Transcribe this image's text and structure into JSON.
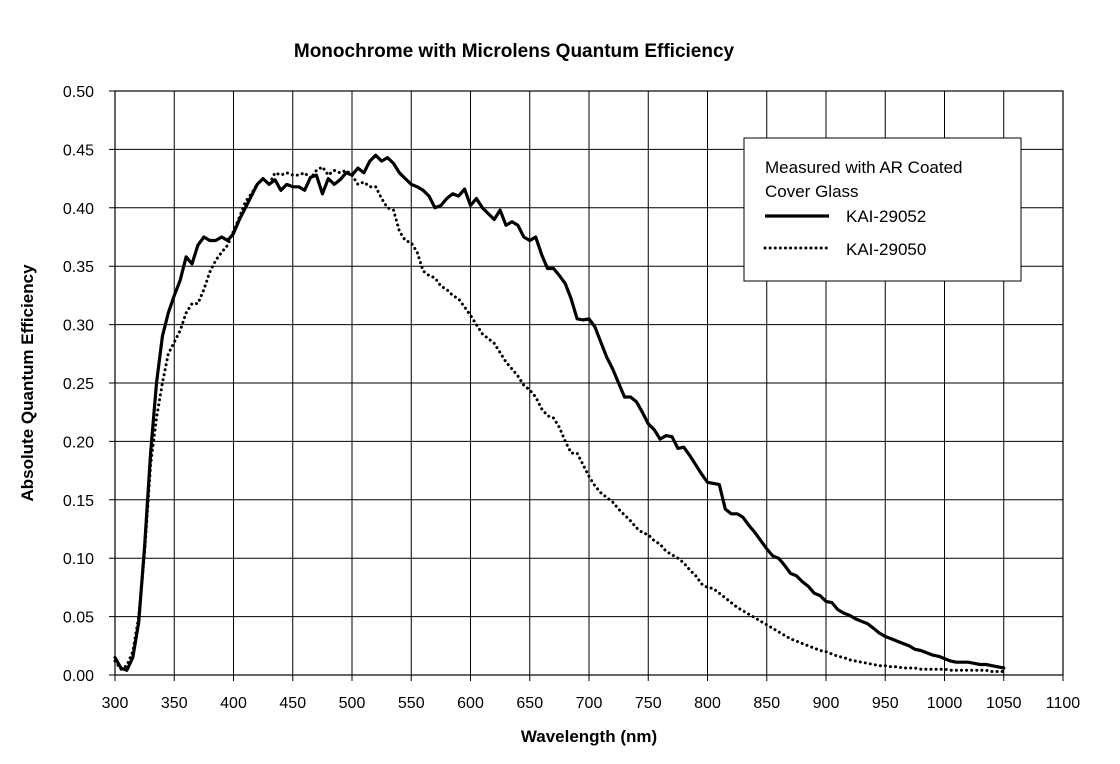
{
  "chart_data": {
    "type": "line",
    "title": "Monochrome with Microlens Quantum Efficiency",
    "xlabel": "Wavelength (nm)",
    "ylabel": "Absolute Quantum Efficiency",
    "xlim": [
      300,
      1100
    ],
    "ylim": [
      0,
      0.5
    ],
    "x_ticks": [
      "300",
      "350",
      "400",
      "450",
      "500",
      "550",
      "600",
      "650",
      "700",
      "750",
      "800",
      "850",
      "900",
      "950",
      "1000",
      "1050",
      "1100"
    ],
    "y_ticks": [
      "0.00",
      "0.05",
      "0.10",
      "0.15",
      "0.20",
      "0.25",
      "0.30",
      "0.35",
      "0.40",
      "0.45",
      "0.50"
    ],
    "grid": true,
    "legend_position": "top-right",
    "legend_title_lines": [
      "Measured with AR Coated",
      "Cover Glass"
    ],
    "series": [
      {
        "name": "KAI-29052",
        "style": "solid",
        "x": [
          300,
          305,
          310,
          315,
          320,
          325,
          330,
          335,
          340,
          345,
          350,
          355,
          360,
          365,
          370,
          375,
          380,
          385,
          390,
          395,
          400,
          405,
          410,
          415,
          420,
          425,
          430,
          435,
          440,
          445,
          450,
          455,
          460,
          465,
          470,
          475,
          480,
          485,
          490,
          495,
          500,
          505,
          510,
          515,
          520,
          525,
          530,
          535,
          540,
          545,
          550,
          555,
          560,
          565,
          570,
          575,
          580,
          585,
          590,
          595,
          600,
          605,
          610,
          615,
          620,
          625,
          630,
          635,
          640,
          645,
          650,
          655,
          660,
          665,
          670,
          675,
          680,
          685,
          690,
          695,
          700,
          705,
          710,
          715,
          720,
          725,
          730,
          735,
          740,
          745,
          750,
          755,
          760,
          765,
          770,
          775,
          780,
          785,
          790,
          795,
          800,
          805,
          810,
          815,
          820,
          825,
          830,
          835,
          840,
          845,
          850,
          855,
          860,
          865,
          870,
          875,
          880,
          885,
          890,
          895,
          900,
          905,
          910,
          915,
          920,
          925,
          930,
          935,
          940,
          945,
          950,
          955,
          960,
          965,
          970,
          975,
          980,
          985,
          990,
          995,
          1000,
          1005,
          1010,
          1015,
          1020,
          1025,
          1030,
          1035,
          1040,
          1045,
          1050
        ],
        "y": [
          0.015,
          0.006,
          0.004,
          0.015,
          0.045,
          0.11,
          0.19,
          0.25,
          0.29,
          0.31,
          0.325,
          0.338,
          0.358,
          0.352,
          0.368,
          0.375,
          0.372,
          0.372,
          0.375,
          0.372,
          0.378,
          0.39,
          0.4,
          0.41,
          0.42,
          0.425,
          0.42,
          0.424,
          0.415,
          0.42,
          0.418,
          0.418,
          0.415,
          0.426,
          0.428,
          0.412,
          0.425,
          0.42,
          0.424,
          0.43,
          0.428,
          0.434,
          0.43,
          0.44,
          0.445,
          0.44,
          0.443,
          0.438,
          0.43,
          0.425,
          0.42,
          0.418,
          0.415,
          0.41,
          0.4,
          0.402,
          0.408,
          0.412,
          0.41,
          0.416,
          0.402,
          0.408,
          0.4,
          0.395,
          0.39,
          0.398,
          0.385,
          0.388,
          0.385,
          0.375,
          0.372,
          0.375,
          0.36,
          0.348,
          0.348,
          0.342,
          0.335,
          0.322,
          0.305,
          0.304,
          0.305,
          0.298,
          0.285,
          0.272,
          0.262,
          0.25,
          0.238,
          0.238,
          0.234,
          0.225,
          0.215,
          0.21,
          0.202,
          0.205,
          0.204,
          0.194,
          0.195,
          0.188,
          0.18,
          0.172,
          0.165,
          0.164,
          0.163,
          0.142,
          0.138,
          0.138,
          0.135,
          0.128,
          0.122,
          0.115,
          0.108,
          0.102,
          0.1,
          0.094,
          0.087,
          0.085,
          0.08,
          0.076,
          0.07,
          0.068,
          0.063,
          0.062,
          0.056,
          0.053,
          0.051,
          0.048,
          0.046,
          0.044,
          0.04,
          0.036,
          0.033,
          0.031,
          0.029,
          0.027,
          0.025,
          0.022,
          0.021,
          0.019,
          0.017,
          0.016,
          0.014,
          0.012,
          0.011,
          0.011,
          0.011,
          0.01,
          0.009,
          0.009,
          0.008,
          0.007,
          0.006
        ]
      },
      {
        "name": "KAI-29050",
        "style": "dotted",
        "x": [
          300,
          305,
          310,
          315,
          320,
          325,
          330,
          335,
          340,
          345,
          350,
          355,
          360,
          365,
          370,
          375,
          380,
          385,
          390,
          395,
          400,
          405,
          410,
          415,
          420,
          425,
          430,
          435,
          440,
          445,
          450,
          455,
          460,
          465,
          470,
          475,
          480,
          485,
          490,
          495,
          500,
          505,
          510,
          515,
          520,
          525,
          530,
          535,
          540,
          545,
          550,
          555,
          560,
          565,
          570,
          575,
          580,
          585,
          590,
          595,
          600,
          605,
          610,
          615,
          620,
          625,
          630,
          635,
          640,
          645,
          650,
          655,
          660,
          665,
          670,
          675,
          680,
          685,
          690,
          695,
          700,
          705,
          710,
          715,
          720,
          725,
          730,
          735,
          740,
          745,
          750,
          755,
          760,
          765,
          770,
          775,
          780,
          785,
          790,
          795,
          800,
          805,
          810,
          815,
          820,
          825,
          830,
          835,
          840,
          845,
          850,
          855,
          860,
          865,
          870,
          875,
          880,
          885,
          890,
          895,
          900,
          905,
          910,
          915,
          920,
          925,
          930,
          935,
          940,
          945,
          950,
          955,
          960,
          965,
          970,
          975,
          980,
          985,
          990,
          995,
          1000,
          1005,
          1010,
          1015,
          1020,
          1025,
          1030,
          1035,
          1040,
          1045,
          1050
        ],
        "y": [
          0.012,
          0.005,
          0.008,
          0.02,
          0.05,
          0.105,
          0.18,
          0.22,
          0.25,
          0.275,
          0.285,
          0.295,
          0.31,
          0.318,
          0.318,
          0.33,
          0.345,
          0.355,
          0.362,
          0.368,
          0.38,
          0.392,
          0.405,
          0.412,
          0.42,
          0.425,
          0.42,
          0.43,
          0.428,
          0.43,
          0.428,
          0.428,
          0.43,
          0.425,
          0.432,
          0.435,
          0.428,
          0.432,
          0.43,
          0.432,
          0.428,
          0.42,
          0.422,
          0.418,
          0.418,
          0.408,
          0.4,
          0.398,
          0.38,
          0.372,
          0.37,
          0.362,
          0.346,
          0.342,
          0.34,
          0.333,
          0.33,
          0.325,
          0.322,
          0.315,
          0.308,
          0.3,
          0.292,
          0.288,
          0.284,
          0.276,
          0.268,
          0.262,
          0.256,
          0.248,
          0.244,
          0.238,
          0.228,
          0.222,
          0.22,
          0.212,
          0.2,
          0.19,
          0.19,
          0.18,
          0.17,
          0.162,
          0.156,
          0.152,
          0.148,
          0.142,
          0.137,
          0.132,
          0.126,
          0.122,
          0.12,
          0.115,
          0.112,
          0.106,
          0.103,
          0.1,
          0.096,
          0.09,
          0.085,
          0.078,
          0.075,
          0.074,
          0.07,
          0.066,
          0.062,
          0.058,
          0.055,
          0.052,
          0.049,
          0.046,
          0.043,
          0.04,
          0.037,
          0.034,
          0.031,
          0.029,
          0.027,
          0.025,
          0.023,
          0.021,
          0.02,
          0.018,
          0.016,
          0.015,
          0.013,
          0.012,
          0.011,
          0.01,
          0.009,
          0.008,
          0.008,
          0.007,
          0.007,
          0.006,
          0.006,
          0.006,
          0.005,
          0.005,
          0.005,
          0.005,
          0.005,
          0.004,
          0.004,
          0.004,
          0.004,
          0.004,
          0.004,
          0.004,
          0.003,
          0.003,
          0.003
        ]
      }
    ]
  }
}
